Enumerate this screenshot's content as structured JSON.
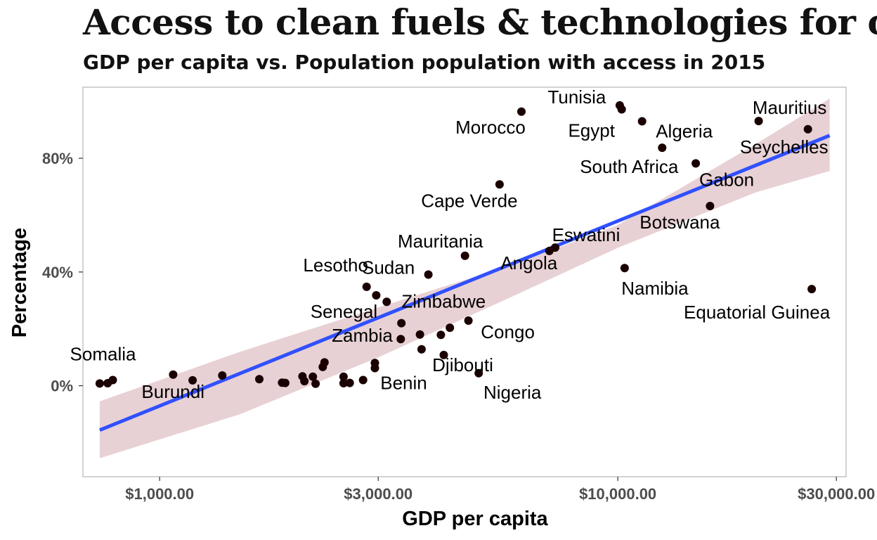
{
  "chart_data": {
    "type": "scatter",
    "title": "Access to clean fuels & technologies for co",
    "subtitle": "GDP per capita vs. Population population with access in 2015",
    "xlabel": "GDP per capita",
    "ylabel": "Percentage",
    "x_scale": "log10",
    "xlim": [
      680,
      31500
    ],
    "ylim": [
      -32,
      105
    ],
    "x_ticks": [
      {
        "value": 1000,
        "label": "$1,000.00"
      },
      {
        "value": 3000,
        "label": "$3,000.00"
      },
      {
        "value": 10000,
        "label": "$10,000.00"
      },
      {
        "value": 30000,
        "label": "$30,000.00"
      }
    ],
    "y_ticks": [
      {
        "value": 0,
        "label": "0%"
      },
      {
        "value": 40,
        "label": "40%"
      },
      {
        "value": 80,
        "label": "80%"
      }
    ],
    "grid": false,
    "colors": {
      "points": "#1a0000",
      "trend_line": "#3150ff",
      "confidence_band": "#d9b3b8",
      "panel_border": "#b3b3b3"
    },
    "trend": {
      "x": [
        740,
        29000
      ],
      "y": [
        -15.6,
        88
      ],
      "band": {
        "x": [
          740,
          1500,
          3000,
          6000,
          10000,
          20000,
          29000
        ],
        "lo": [
          -25.5,
          -10.0,
          10.0,
          32.0,
          48.5,
          68.0,
          75.5
        ],
        "hi": [
          -5.5,
          12.0,
          27.5,
          43.0,
          56.5,
          85.0,
          101.0
        ]
      }
    },
    "points": [
      {
        "x": 740,
        "y": 0.8,
        "label": ""
      },
      {
        "x": 770,
        "y": 0.9,
        "label": ""
      },
      {
        "x": 790,
        "y": 2.0,
        "label": "Somalia",
        "lx": "-",
        "ly": "above"
      },
      {
        "x": 1070,
        "y": 3.9,
        "label": "Burundi",
        "lx": 740,
        "ly": -5.2
      },
      {
        "x": 1180,
        "y": 1.9,
        "label": ""
      },
      {
        "x": 1370,
        "y": 3.6,
        "label": ""
      },
      {
        "x": 1650,
        "y": 2.3,
        "label": ""
      },
      {
        "x": 1850,
        "y": 1.1,
        "label": ""
      },
      {
        "x": 1880,
        "y": 1.0,
        "label": ""
      },
      {
        "x": 2050,
        "y": 3.3,
        "label": ""
      },
      {
        "x": 2070,
        "y": 1.6,
        "label": ""
      },
      {
        "x": 2160,
        "y": 3.2,
        "label": ""
      },
      {
        "x": 2190,
        "y": 0.7,
        "label": ""
      },
      {
        "x": 2270,
        "y": 6.6,
        "label": ""
      },
      {
        "x": 2290,
        "y": 8.2,
        "label": ""
      },
      {
        "x": 2520,
        "y": 3.2,
        "label": ""
      },
      {
        "x": 2520,
        "y": 0.9,
        "label": ""
      },
      {
        "x": 2600,
        "y": 1.0,
        "label": ""
      },
      {
        "x": 2780,
        "y": 2.0,
        "label": ""
      },
      {
        "x": 2950,
        "y": 8.0,
        "label": "Zambia"
      },
      {
        "x": 2950,
        "y": 6.2,
        "label": "Benin"
      },
      {
        "x": 2830,
        "y": 34.8,
        "label": "Lesotho"
      },
      {
        "x": 2970,
        "y": 31.8,
        "label": "Senegal"
      },
      {
        "x": 3130,
        "y": 29.5,
        "label": "Zimbabwe"
      },
      {
        "x": 3370,
        "y": 22.0,
        "label": ""
      },
      {
        "x": 3360,
        "y": 16.4,
        "label": ""
      },
      {
        "x": 3700,
        "y": 18.0,
        "label": ""
      },
      {
        "x": 3730,
        "y": 12.8,
        "label": ""
      },
      {
        "x": 3860,
        "y": 39.1,
        "label": "Sudan"
      },
      {
        "x": 4110,
        "y": 17.9,
        "label": ""
      },
      {
        "x": 4170,
        "y": 10.8,
        "label": "Djibouti"
      },
      {
        "x": 4300,
        "y": 20.4,
        "label": ""
      },
      {
        "x": 4640,
        "y": 45.7,
        "label": "Mauritania"
      },
      {
        "x": 4720,
        "y": 22.9,
        "label": "Congo"
      },
      {
        "x": 4970,
        "y": 4.4,
        "label": "Nigeria"
      },
      {
        "x": 5520,
        "y": 70.8,
        "label": "Cape Verde"
      },
      {
        "x": 6160,
        "y": 96.4,
        "label": "Morocco"
      },
      {
        "x": 7090,
        "y": 47.4,
        "label": "Angola"
      },
      {
        "x": 7300,
        "y": 48.6,
        "label": "Eswatini"
      },
      {
        "x": 10100,
        "y": 98.6,
        "label": "Tunisia"
      },
      {
        "x": 10200,
        "y": 97.2,
        "label": "Egypt"
      },
      {
        "x": 10350,
        "y": 41.4,
        "label": "Namibia"
      },
      {
        "x": 11300,
        "y": 93.0,
        "label": "Algeria"
      },
      {
        "x": 12500,
        "y": 83.7,
        "label": "South Africa"
      },
      {
        "x": 14800,
        "y": 78.2,
        "label": "Gabon"
      },
      {
        "x": 15900,
        "y": 63.2,
        "label": "Botswana"
      },
      {
        "x": 20300,
        "y": 93.1,
        "label": "Mauritius"
      },
      {
        "x": 26000,
        "y": 90.2,
        "label": "Seychelles"
      },
      {
        "x": 26500,
        "y": 34.0,
        "label": "Equatorial Guinea"
      }
    ]
  }
}
